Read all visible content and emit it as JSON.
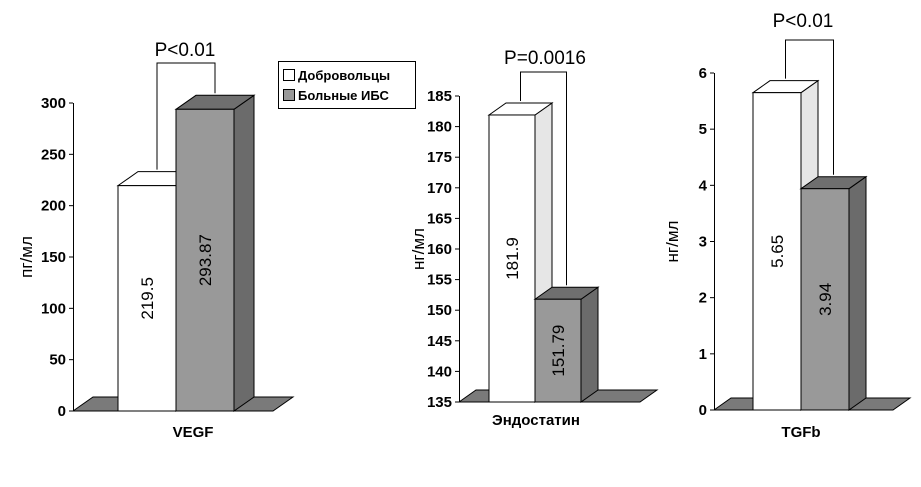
{
  "legend": {
    "items": [
      {
        "label": "Добровольцы",
        "color": "#ffffff"
      },
      {
        "label": "Больные ИБС",
        "color": "#999999"
      }
    ]
  },
  "colors": {
    "front_gray": "#999999",
    "side_gray": "#6b6b6b",
    "top_gray": "#6f6f6f",
    "floor": "#7a7a7a",
    "white": "#ffffff",
    "white_side": "#e6e6e6"
  },
  "chart_data": [
    {
      "type": "bar",
      "categories": [
        "VEGF"
      ],
      "series": [
        {
          "name": "Добровольцы",
          "values": [
            219.5
          ]
        },
        {
          "name": "Больные ИБС",
          "values": [
            293.87
          ]
        }
      ],
      "data_labels": [
        "219.5",
        "293.87"
      ],
      "xlabel": "VEGF",
      "ylabel": "пг/мл",
      "ylim": [
        0,
        300
      ],
      "yticks": [
        "0",
        "50",
        "100",
        "150",
        "200",
        "250",
        "300"
      ],
      "annotation": "P<0.01",
      "grid": false,
      "legend_position": "top-right"
    },
    {
      "type": "bar",
      "categories": [
        "Эндостатин"
      ],
      "series": [
        {
          "name": "Добровольцы",
          "values": [
            181.9
          ]
        },
        {
          "name": "Больные ИБС",
          "values": [
            151.79
          ]
        }
      ],
      "data_labels": [
        "181.9",
        "151.79"
      ],
      "xlabel": "Эндостатин",
      "ylabel": "нг/мл",
      "ylim": [
        135,
        185
      ],
      "yticks": [
        "135",
        "140",
        "145",
        "150",
        "155",
        "160",
        "165",
        "170",
        "175",
        "180",
        "185"
      ],
      "annotation": "P=0.0016",
      "grid": false
    },
    {
      "type": "bar",
      "categories": [
        "TGFb"
      ],
      "series": [
        {
          "name": "Добровольцы",
          "values": [
            5.65
          ]
        },
        {
          "name": "Больные ИБС",
          "values": [
            3.94
          ]
        }
      ],
      "data_labels": [
        "5.65",
        "3.94"
      ],
      "xlabel": "TGFb",
      "ylabel": "нг/мл",
      "ylim": [
        0,
        6
      ],
      "yticks": [
        "0",
        "1",
        "2",
        "3",
        "4",
        "5",
        "6"
      ],
      "annotation": "P<0.01",
      "grid": false
    }
  ]
}
